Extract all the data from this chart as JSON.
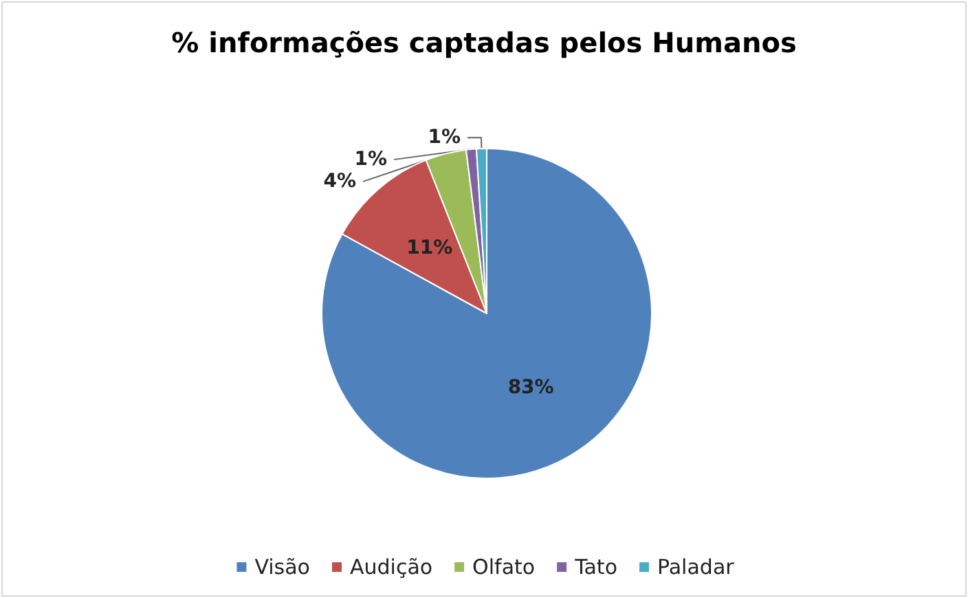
{
  "chart_data": {
    "type": "pie",
    "title": "% informações captadas pelos Humanos",
    "categories": [
      "Visão",
      "Audição",
      "Olfato",
      "Tato",
      "Paladar"
    ],
    "values": [
      83,
      11,
      4,
      1,
      1
    ],
    "colors": [
      "#4f81bd",
      "#c0504d",
      "#9bbb59",
      "#8064a2",
      "#4bacc6"
    ],
    "value_labels": [
      "83%",
      "11%",
      "4%",
      "1%",
      "1%"
    ],
    "legend": "bottom"
  }
}
